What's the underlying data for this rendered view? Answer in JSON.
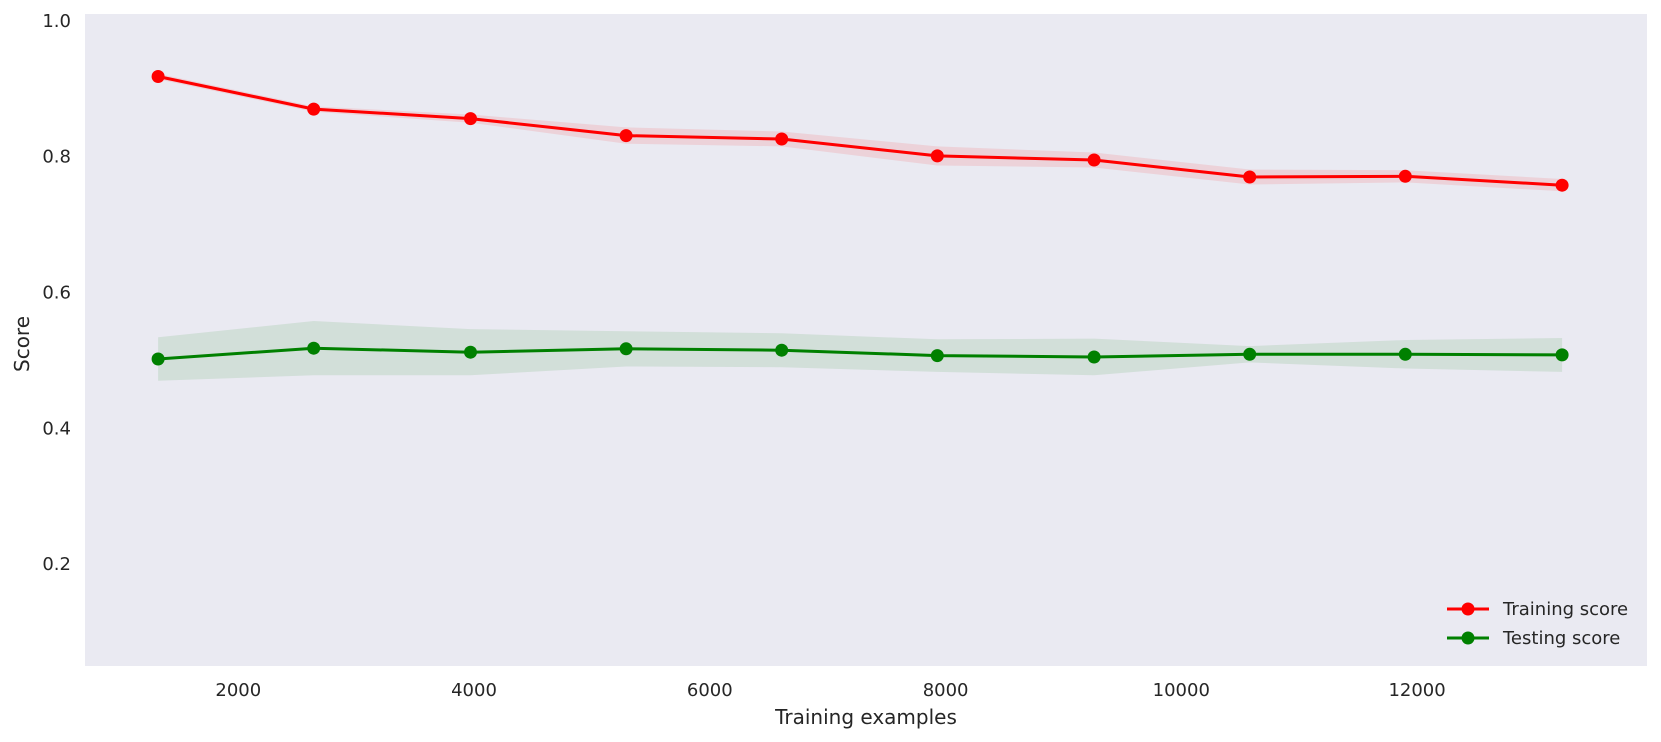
{
  "chart_data": {
    "type": "line",
    "title": "",
    "xlabel": "Training examples",
    "ylabel": "Score",
    "xlim": [
      700,
      13950
    ],
    "ylim": [
      0.05,
      1.01
    ],
    "xticks": [
      2000,
      4000,
      6000,
      8000,
      10000,
      12000
    ],
    "yticks": [
      0.2,
      0.4,
      0.6,
      0.8,
      1.0
    ],
    "xtick_labels": [
      "2000",
      "4000",
      "6000",
      "8000",
      "10000",
      "12000"
    ],
    "ytick_labels": [
      "0.2",
      "0.4",
      "0.6",
      "0.8",
      "1.0"
    ],
    "grid": false,
    "background": "#eaeaf2",
    "legend_position": "lower-right",
    "x": [
      1320,
      2640,
      3970,
      5290,
      6610,
      7930,
      9260,
      10580,
      11900,
      13230
    ],
    "series": [
      {
        "name": "Training score",
        "color": "#ff0000",
        "band_color": "#ff0000",
        "values": [
          0.918,
          0.87,
          0.856,
          0.831,
          0.826,
          0.801,
          0.795,
          0.77,
          0.771,
          0.758
        ],
        "upper": [
          0.922,
          0.874,
          0.862,
          0.843,
          0.837,
          0.815,
          0.806,
          0.781,
          0.78,
          0.767
        ],
        "lower": [
          0.914,
          0.866,
          0.85,
          0.819,
          0.815,
          0.787,
          0.784,
          0.759,
          0.762,
          0.749
        ]
      },
      {
        "name": "Testing score",
        "color": "#008000",
        "band_color": "#008000",
        "values": [
          0.502,
          0.518,
          0.512,
          0.517,
          0.515,
          0.507,
          0.505,
          0.509,
          0.509,
          0.508
        ],
        "upper": [
          0.534,
          0.558,
          0.546,
          0.543,
          0.54,
          0.531,
          0.532,
          0.521,
          0.53,
          0.533
        ],
        "lower": [
          0.47,
          0.478,
          0.478,
          0.491,
          0.49,
          0.483,
          0.478,
          0.497,
          0.488,
          0.483
        ]
      }
    ]
  }
}
